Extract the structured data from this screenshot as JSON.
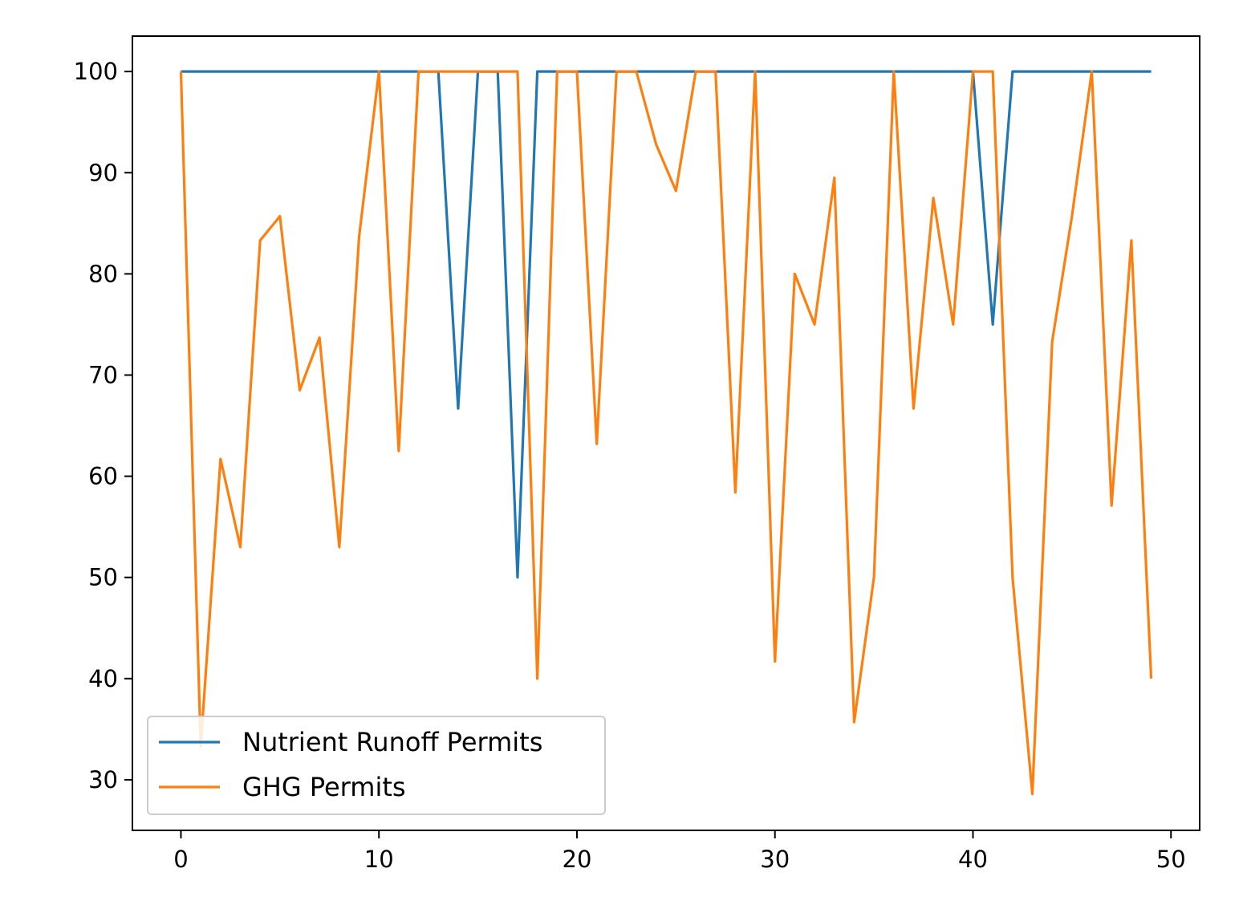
{
  "chart_data": {
    "type": "line",
    "title": "",
    "xlabel": "",
    "ylabel": "",
    "xlim": [
      -2.45,
      51.45
    ],
    "ylim": [
      25.0,
      103.5
    ],
    "xticks": [
      0,
      10,
      20,
      30,
      40,
      50
    ],
    "yticks": [
      30,
      40,
      50,
      60,
      70,
      80,
      90,
      100
    ],
    "xtick_labels": [
      "0",
      "10",
      "20",
      "30",
      "40",
      "50"
    ],
    "ytick_labels": [
      "30",
      "40",
      "50",
      "60",
      "70",
      "80",
      "90",
      "100"
    ],
    "grid": false,
    "legend_position": "lower-left",
    "x": [
      0,
      1,
      2,
      3,
      4,
      5,
      6,
      7,
      8,
      9,
      10,
      11,
      12,
      13,
      14,
      15,
      16,
      17,
      18,
      19,
      20,
      21,
      22,
      23,
      24,
      25,
      26,
      27,
      28,
      29,
      30,
      31,
      32,
      33,
      34,
      35,
      36,
      37,
      38,
      39,
      40,
      41,
      42,
      43,
      44,
      45,
      46,
      47,
      48,
      49
    ],
    "series": [
      {
        "name": "Nutrient Runoff Permits",
        "color": "#1f77b4",
        "values": [
          100,
          100,
          100,
          100,
          100,
          100,
          100,
          100,
          100,
          100,
          100,
          100,
          100,
          100,
          66.7,
          100,
          100,
          50,
          100,
          100,
          100,
          100,
          100,
          100,
          100,
          100,
          100,
          100,
          100,
          100,
          100,
          100,
          100,
          100,
          100,
          100,
          100,
          100,
          100,
          100,
          100,
          75,
          100,
          100,
          100,
          100,
          100,
          100,
          100,
          100
        ]
      },
      {
        "name": "GHG Permits",
        "color": "#ff7f0e",
        "values": [
          100,
          33.3,
          61.7,
          53,
          83.3,
          85.7,
          68.5,
          73.7,
          53,
          83.7,
          100,
          62.5,
          100,
          100,
          100,
          100,
          100,
          100,
          40,
          100,
          100,
          63.2,
          100,
          100,
          92.8,
          88.2,
          100,
          100,
          58.4,
          100,
          41.7,
          80,
          75,
          89.5,
          35.7,
          50,
          100,
          66.7,
          87.5,
          75,
          100,
          100,
          50,
          28.6,
          73.3,
          85.7,
          100,
          57.1,
          83.3,
          40
        ]
      }
    ]
  }
}
